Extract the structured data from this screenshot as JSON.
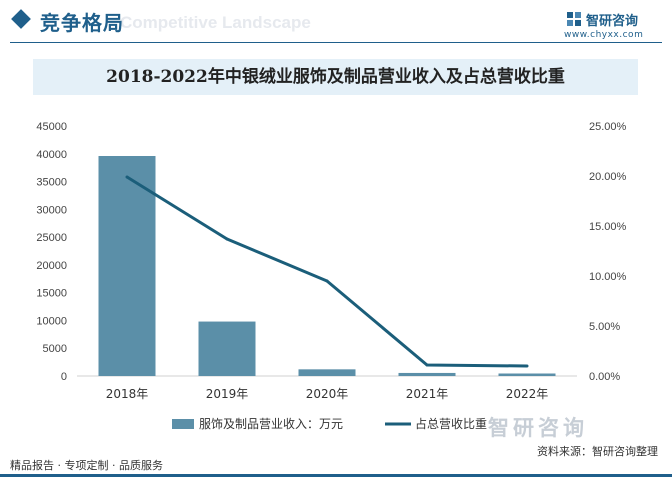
{
  "header": {
    "title": "竞争格局",
    "watermark_text": "Competitive Landscape",
    "brand_name": "智研咨询",
    "brand_url": "www.chyxx.com"
  },
  "chart_data": {
    "type": "bar",
    "title": "2018-2022年中银绒业服饰及制品营业收入及占总营收比重",
    "categories": [
      "2018年",
      "2019年",
      "2020年",
      "2021年",
      "2022年"
    ],
    "series": [
      {
        "name": "服饰及制品营业收入：万元",
        "type": "bar",
        "axis": "left",
        "color": "#5b8fa8",
        "values": [
          39600,
          9800,
          1200,
          550,
          450
        ]
      },
      {
        "name": "占总营收比重",
        "type": "line",
        "axis": "right",
        "color": "#1b5e7a",
        "values": [
          19.9,
          13.7,
          9.5,
          1.1,
          1.0
        ]
      }
    ],
    "y_left": {
      "min": 0,
      "max": 45000,
      "ticks": [
        "0",
        "5000",
        "10000",
        "15000",
        "20000",
        "25000",
        "30000",
        "35000",
        "40000",
        "45000"
      ]
    },
    "y_right": {
      "min": 0,
      "max": 25,
      "ticks": [
        "0.00%",
        "5.00%",
        "10.00%",
        "15.00%",
        "20.00%",
        "25.00%"
      ]
    },
    "legend_position": "bottom",
    "grid": false
  },
  "footer": {
    "left": "精品报告 · 专项定制 · 品质服务",
    "source": "资料来源：智研咨询整理",
    "watermark": "智研咨询"
  }
}
